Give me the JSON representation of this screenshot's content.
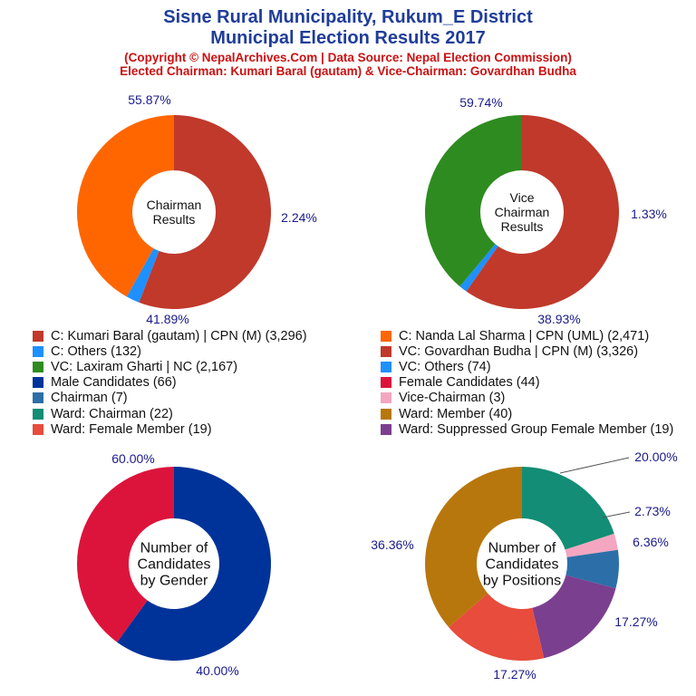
{
  "header": {
    "title_line1": "Sisne Rural Municipality, Rukum_E District",
    "title_line2": "Municipal Election Results 2017",
    "subtitle_line1": "(Copyright © NepalArchives.Com | Data Source: Nepal Election Commission)",
    "subtitle_line2": "Elected Chairman: Kumari Baral (gautam) & Vice-Chairman: Govardhan Budha"
  },
  "chart_data": [
    {
      "type": "pie",
      "center_label": [
        "Chairman",
        "Results"
      ],
      "slices": [
        {
          "name": "C: Kumari Baral (gautam) | CPN (M)",
          "value": 3296,
          "label": "55.87%",
          "color": "#c0392b"
        },
        {
          "name": "C: Others",
          "value": 132,
          "label": "2.24%",
          "color": "#1e90ff"
        },
        {
          "name": "C: Nanda Lal Sharma | CPN (UML)",
          "value": 2471,
          "label": "41.89%",
          "color": "#ff6600"
        }
      ]
    },
    {
      "type": "pie",
      "center_label": [
        "Vice",
        "Chairman",
        "Results"
      ],
      "slices": [
        {
          "name": "VC: Govardhan Budha | CPN (M)",
          "value": 3326,
          "label": "59.74%",
          "color": "#c0392b"
        },
        {
          "name": "VC: Others",
          "value": 74,
          "label": "1.33%",
          "color": "#1e90ff"
        },
        {
          "name": "VC: Laxiram Gharti | NC",
          "value": 2167,
          "label": "38.93%",
          "color": "#2e8b1f"
        }
      ]
    },
    {
      "type": "pie",
      "center_label": [
        "Number of",
        "Candidates",
        "by Gender"
      ],
      "slices": [
        {
          "name": "Male Candidates",
          "value": 66,
          "label": "60.00%",
          "color": "#003399"
        },
        {
          "name": "Female Candidates",
          "value": 44,
          "label": "40.00%",
          "color": "#dc143c"
        }
      ]
    },
    {
      "type": "pie",
      "center_label": [
        "Number of",
        "Candidates",
        "by Positions"
      ],
      "slices": [
        {
          "name": "Ward: Chairman",
          "value": 22,
          "label": "20.00%",
          "color": "#138d75"
        },
        {
          "name": "Vice-Chairman",
          "value": 3,
          "label": "2.73%",
          "color": "#f4a6c0"
        },
        {
          "name": "Chairman",
          "value": 7,
          "label": "6.36%",
          "color": "#2c6fa8"
        },
        {
          "name": "Ward: Suppressed Group Female Member",
          "value": 19,
          "label": "17.27%",
          "color": "#7b3f8f"
        },
        {
          "name": "Ward: Female Member",
          "value": 19,
          "label": "17.27%",
          "color": "#e74c3c"
        },
        {
          "name": "Ward: Member",
          "value": 40,
          "label": "36.36%",
          "color": "#b8770c"
        }
      ]
    }
  ],
  "legend": [
    {
      "text": "C: Kumari Baral (gautam) | CPN (M) (3,296)",
      "color": "#c0392b"
    },
    {
      "text": "C: Nanda Lal Sharma | CPN (UML) (2,471)",
      "color": "#ff6600"
    },
    {
      "text": "C: Others (132)",
      "color": "#1e90ff"
    },
    {
      "text": "VC: Govardhan Budha | CPN (M) (3,326)",
      "color": "#c0392b"
    },
    {
      "text": "VC: Laxiram Gharti | NC (2,167)",
      "color": "#2e8b1f"
    },
    {
      "text": "VC: Others (74)",
      "color": "#1e90ff"
    },
    {
      "text": "Male Candidates (66)",
      "color": "#003399"
    },
    {
      "text": "Female Candidates (44)",
      "color": "#dc143c"
    },
    {
      "text": "Chairman (7)",
      "color": "#2c6fa8"
    },
    {
      "text": "Vice-Chairman (3)",
      "color": "#f4a6c0"
    },
    {
      "text": "Ward: Chairman (22)",
      "color": "#138d75"
    },
    {
      "text": "Ward: Member (40)",
      "color": "#b8770c"
    },
    {
      "text": "Ward: Female Member (19)",
      "color": "#e74c3c"
    },
    {
      "text": "Ward: Suppressed Group Female Member (19)",
      "color": "#7b3f8f"
    }
  ]
}
